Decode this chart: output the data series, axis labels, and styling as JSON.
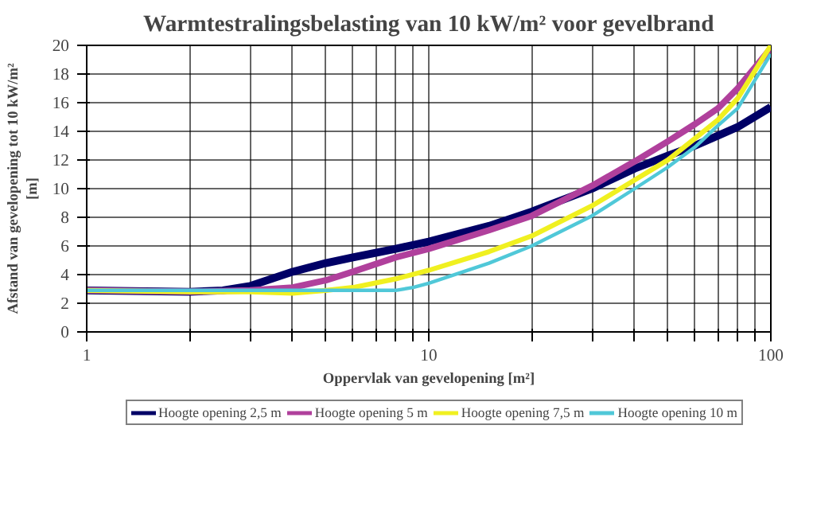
{
  "chart_data": {
    "type": "line",
    "title": "Warmtestralingsbelasting van 10 kW/m² voor gevelbrand",
    "xlabel": "Oppervlak van gevelopening [m²]",
    "ylabel": "Afstand van gevelopening tot 10 kW/m²\n[m]",
    "log": "x",
    "xlim": [
      1,
      100
    ],
    "ylim": [
      0,
      20
    ],
    "xticks": [
      1,
      {
        "value": 2,
        "label": null
      },
      {
        "value": 3,
        "label": null
      },
      {
        "value": 4,
        "label": null
      },
      {
        "value": 5,
        "label": null
      },
      {
        "value": 6,
        "label": null
      },
      {
        "value": 7,
        "label": null
      },
      {
        "value": 8,
        "label": null
      },
      {
        "value": 9,
        "label": null
      },
      10,
      {
        "value": 20,
        "label": null
      },
      {
        "value": 30,
        "label": null
      },
      {
        "value": 40,
        "label": null
      },
      {
        "value": 50,
        "label": null
      },
      {
        "value": 60,
        "label": null
      },
      {
        "value": 70,
        "label": null
      },
      {
        "value": 80,
        "label": null
      },
      {
        "value": 90,
        "label": null
      },
      100
    ],
    "yticks": [
      0,
      2,
      4,
      6,
      8,
      10,
      12,
      14,
      16,
      18,
      20
    ],
    "grid": true,
    "legend": "bottom",
    "line_style": "solid",
    "series": [
      {
        "name": "Hoogte opening 2,5 m",
        "color": "#000066",
        "x": [
          1,
          2,
          2.5,
          3,
          4,
          5,
          6,
          8,
          10,
          15,
          20,
          30,
          40,
          50,
          60,
          70,
          80,
          100
        ],
        "values": [
          2.9,
          2.8,
          2.9,
          3.2,
          4.2,
          4.8,
          5.2,
          5.8,
          6.3,
          7.4,
          8.4,
          10,
          11.4,
          12.3,
          13,
          13.7,
          14.3,
          15.7
        ]
      },
      {
        "name": "Hoogte opening 5 m",
        "color": "#b0409c",
        "x": [
          1,
          2,
          3,
          4,
          5,
          6,
          8,
          10,
          15,
          20,
          30,
          40,
          50,
          60,
          70,
          80,
          100
        ],
        "values": [
          2.9,
          2.8,
          2.9,
          3.1,
          3.6,
          4.2,
          5.2,
          5.8,
          7.1,
          8.1,
          10.2,
          11.9,
          13.3,
          14.5,
          15.6,
          17,
          19.8
        ]
      },
      {
        "name": "Hoogte opening 7,5 m",
        "color": "#f0f020",
        "x": [
          1,
          2,
          3,
          4,
          5,
          6,
          8,
          10,
          15,
          20,
          30,
          40,
          50,
          60,
          70,
          80,
          100
        ],
        "values": [
          2.9,
          2.8,
          2.8,
          2.7,
          2.9,
          3.1,
          3.7,
          4.3,
          5.6,
          6.7,
          8.8,
          10.6,
          12,
          13.5,
          14.8,
          16.3,
          20
        ]
      },
      {
        "name": "Hoogte opening 10 m",
        "color": "#50c8d8",
        "x": [
          1,
          2,
          5,
          8,
          9,
          10,
          15,
          20,
          30,
          40,
          50,
          60,
          70,
          80,
          100
        ],
        "values": [
          2.9,
          2.9,
          2.9,
          2.9,
          3.1,
          3.4,
          4.8,
          6,
          8.1,
          10,
          11.5,
          12.9,
          14.4,
          15.6,
          19.4
        ]
      }
    ]
  }
}
